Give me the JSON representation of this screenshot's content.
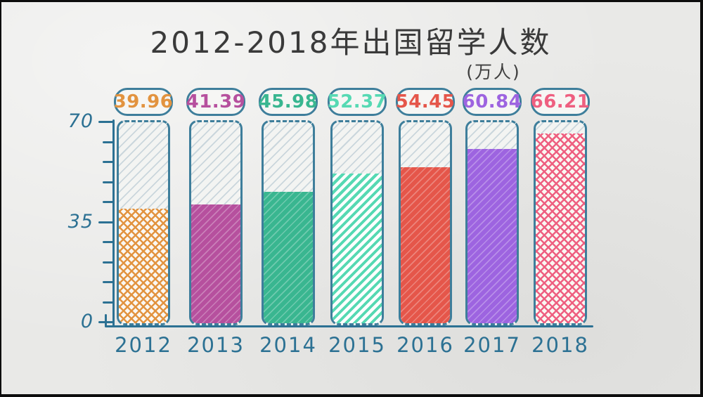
{
  "frame": {
    "border_color": "#0d0d0d",
    "paper_color": "#e9e9e7"
  },
  "header": {
    "title": "2012-2018年出国留学人数",
    "unit_label": "(万人)"
  },
  "axis": {
    "color": "#2c7193",
    "label_color": "#2c7193",
    "ytick_labels": [
      "70",
      "35",
      "0"
    ]
  },
  "chart_data": {
    "type": "bar",
    "style": "hand-drawn sketch, test-tube shaped bars with hatched fills",
    "title": "2012-2018年出国留学人数",
    "unit": "万人",
    "categories": [
      "2012",
      "2013",
      "2014",
      "2015",
      "2016",
      "2017",
      "2018"
    ],
    "values": [
      39.96,
      41.39,
      45.98,
      52.37,
      54.45,
      60.84,
      66.21
    ],
    "value_labels": [
      "39.96",
      "41.39",
      "45.98",
      "52.37",
      "54.45",
      "60.84",
      "66.21"
    ],
    "bar_colors": [
      "#e2933f",
      "#b6509e",
      "#39b690",
      "#56d9b3",
      "#e5564a",
      "#9d64e0",
      "#ee5f80"
    ],
    "textures": [
      "crosshatch",
      "scratch",
      "scratch",
      "diagonal",
      "scratch",
      "scratch",
      "crosshatch"
    ],
    "ylim": [
      0,
      70
    ],
    "ytick_major_values": [
      70,
      35,
      0
    ],
    "ytick_minor_step": 7,
    "grid": false,
    "legend_position": "none",
    "empty_tube_hatch_color": "#c5d4dc",
    "tube_outline_color": "#3e7e9b"
  }
}
